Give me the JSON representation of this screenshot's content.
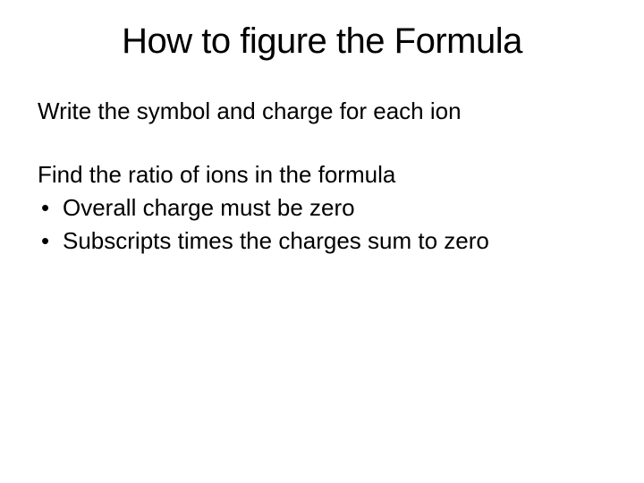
{
  "slide": {
    "title": "How to figure the Formula",
    "line1": "Write the symbol and charge for each ion",
    "line2": "Find the ratio of ions in the formula",
    "bullets": [
      "Overall charge must be zero",
      "Subscripts times the charges sum to zero"
    ]
  },
  "colors": {
    "background": "#ffffff",
    "text": "#000000"
  },
  "typography": {
    "title_fontsize": 40,
    "body_fontsize": 26,
    "font_family": "Arial"
  }
}
